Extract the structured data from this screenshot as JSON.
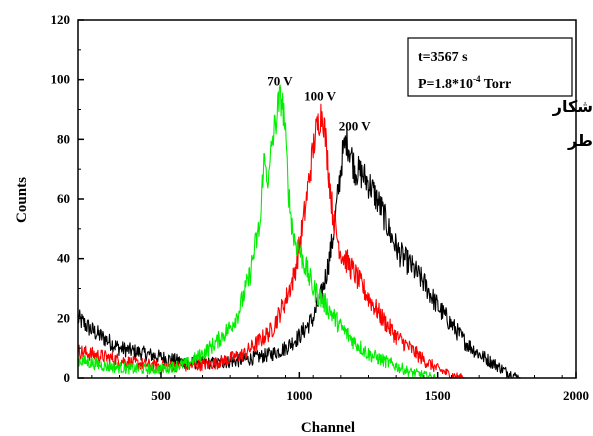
{
  "chart_data": {
    "type": "line",
    "title": "",
    "xlabel": "Channel",
    "ylabel": "Counts",
    "xlim": [
      200,
      2000
    ],
    "ylim": [
      0,
      120
    ],
    "x_ticks": [
      500,
      1000,
      1500,
      2000
    ],
    "y_ticks": [
      0,
      20,
      40,
      60,
      80,
      100,
      120
    ],
    "grid": false,
    "legend": "none",
    "annotations": {
      "box_line1": "t=3567 s",
      "box_line2_prefix": "P=1.8*10",
      "box_line2_exp": "-4",
      "box_line2_suffix": " Torr",
      "overflow_line1": "شکار",
      "overflow_line2": "طر"
    },
    "series": [
      {
        "name": "70 V",
        "color": "#00ee00",
        "points": [
          [
            200,
            6
          ],
          [
            300,
            4
          ],
          [
            400,
            3
          ],
          [
            500,
            3
          ],
          [
            600,
            5
          ],
          [
            650,
            8
          ],
          [
            700,
            12
          ],
          [
            750,
            17
          ],
          [
            780,
            22
          ],
          [
            800,
            28
          ],
          [
            820,
            34
          ],
          [
            840,
            44
          ],
          [
            860,
            52
          ],
          [
            870,
            73
          ],
          [
            880,
            70
          ],
          [
            890,
            66
          ],
          [
            900,
            78
          ],
          [
            915,
            86
          ],
          [
            925,
            92
          ],
          [
            935,
            94
          ],
          [
            945,
            88
          ],
          [
            955,
            72
          ],
          [
            965,
            58
          ],
          [
            980,
            47
          ],
          [
            1000,
            43
          ],
          [
            1020,
            38
          ],
          [
            1050,
            30
          ],
          [
            1100,
            24
          ],
          [
            1150,
            17
          ],
          [
            1200,
            12
          ],
          [
            1250,
            8
          ],
          [
            1300,
            6
          ],
          [
            1350,
            4
          ],
          [
            1400,
            2
          ],
          [
            1450,
            1
          ],
          [
            1500,
            0
          ],
          [
            1600,
            0
          ],
          [
            2000,
            0
          ]
        ]
      },
      {
        "name": "100 V",
        "color": "#ff0000",
        "points": [
          [
            200,
            9
          ],
          [
            300,
            7
          ],
          [
            400,
            5
          ],
          [
            500,
            4
          ],
          [
            600,
            4
          ],
          [
            700,
            5
          ],
          [
            800,
            8
          ],
          [
            850,
            12
          ],
          [
            900,
            16
          ],
          [
            950,
            26
          ],
          [
            980,
            34
          ],
          [
            1000,
            44
          ],
          [
            1020,
            56
          ],
          [
            1040,
            70
          ],
          [
            1055,
            80
          ],
          [
            1065,
            84
          ],
          [
            1075,
            88
          ],
          [
            1085,
            89
          ],
          [
            1095,
            80
          ],
          [
            1105,
            70
          ],
          [
            1120,
            56
          ],
          [
            1135,
            48
          ],
          [
            1150,
            42
          ],
          [
            1165,
            40
          ],
          [
            1180,
            38
          ],
          [
            1200,
            35
          ],
          [
            1250,
            27
          ],
          [
            1300,
            20
          ],
          [
            1350,
            14
          ],
          [
            1400,
            10
          ],
          [
            1450,
            6
          ],
          [
            1500,
            3
          ],
          [
            1550,
            1
          ],
          [
            1600,
            0
          ],
          [
            2000,
            0
          ]
        ]
      },
      {
        "name": "200 V",
        "color": "#000000",
        "points": [
          [
            200,
            20
          ],
          [
            250,
            16
          ],
          [
            300,
            13
          ],
          [
            350,
            10
          ],
          [
            400,
            9
          ],
          [
            450,
            8
          ],
          [
            500,
            7
          ],
          [
            550,
            6
          ],
          [
            600,
            5
          ],
          [
            700,
            5
          ],
          [
            800,
            6
          ],
          [
            900,
            8
          ],
          [
            950,
            10
          ],
          [
            1000,
            14
          ],
          [
            1050,
            20
          ],
          [
            1080,
            28
          ],
          [
            1100,
            36
          ],
          [
            1120,
            46
          ],
          [
            1140,
            62
          ],
          [
            1155,
            74
          ],
          [
            1170,
            80
          ],
          [
            1185,
            76
          ],
          [
            1200,
            70
          ],
          [
            1230,
            68
          ],
          [
            1260,
            64
          ],
          [
            1300,
            56
          ],
          [
            1330,
            48
          ],
          [
            1360,
            42
          ],
          [
            1400,
            38
          ],
          [
            1450,
            32
          ],
          [
            1500,
            24
          ],
          [
            1550,
            18
          ],
          [
            1600,
            12
          ],
          [
            1650,
            8
          ],
          [
            1700,
            5
          ],
          [
            1750,
            2
          ],
          [
            1800,
            0
          ],
          [
            2000,
            0
          ]
        ]
      }
    ],
    "series_labels": [
      {
        "text": "70 V",
        "x": 930,
        "y": 98
      },
      {
        "text": "100 V",
        "x": 1075,
        "y": 93
      },
      {
        "text": "200 V",
        "x": 1200,
        "y": 83
      }
    ]
  }
}
